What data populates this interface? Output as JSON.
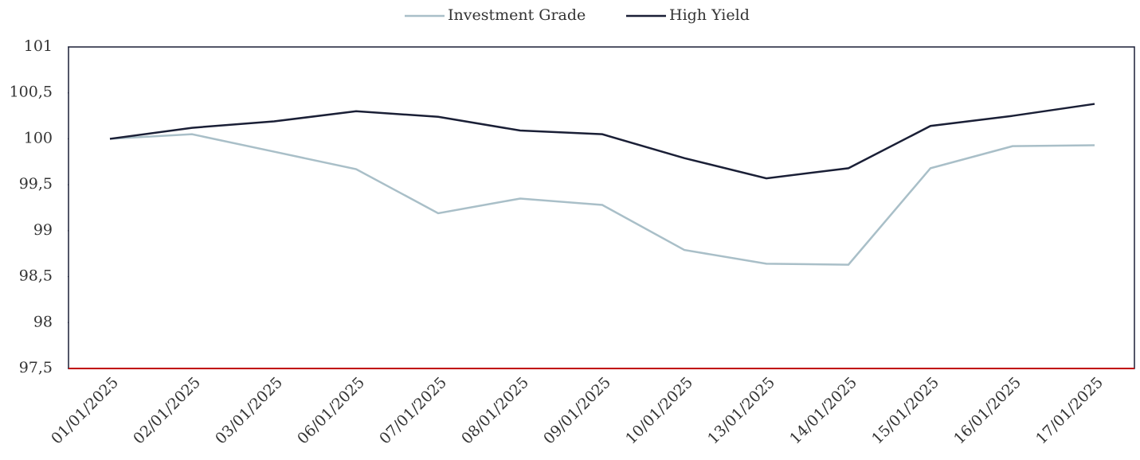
{
  "chart_data": {
    "type": "line",
    "categories": [
      "01/01/2025",
      "02/01/2025",
      "03/01/2025",
      "06/01/2025",
      "07/01/2025",
      "08/01/2025",
      "09/01/2025",
      "10/01/2025",
      "13/01/2025",
      "14/01/2025",
      "15/01/2025",
      "16/01/2025",
      "17/01/2025"
    ],
    "series": [
      {
        "name": "Investment Grade",
        "color": "#a9bfc8",
        "values": [
          100,
          100.05,
          99.86,
          99.67,
          99.19,
          99.35,
          99.28,
          98.79,
          98.64,
          98.63,
          99.68,
          99.92,
          99.93
        ]
      },
      {
        "name": "High Yield",
        "color": "#1a1f36",
        "values": [
          100,
          100.12,
          100.19,
          100.3,
          100.24,
          100.09,
          100.05,
          99.79,
          99.57,
          99.68,
          100.14,
          100.25,
          100.38
        ]
      }
    ],
    "ylim": [
      97.5,
      101
    ],
    "yticks": [
      {
        "value": 97.5,
        "label": "97,5"
      },
      98,
      {
        "value": 98.5,
        "label": "98,5"
      },
      99,
      {
        "value": 99.5,
        "label": "99,5"
      },
      100,
      {
        "value": 100.5,
        "label": "100,5"
      },
      101
    ],
    "legend": "top"
  }
}
